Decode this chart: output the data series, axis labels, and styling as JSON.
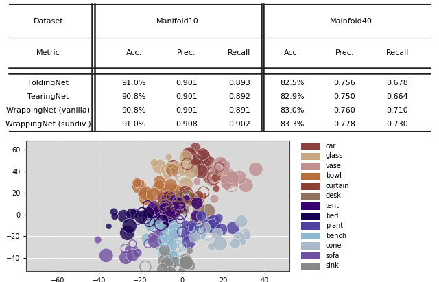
{
  "table_header1_left": "Dataset",
  "table_header1_mid": "Manifold10",
  "table_header1_right": "Mainfold40",
  "table_header2": [
    "Metric",
    "Acc.",
    "Prec.",
    "Recall",
    "Acc.",
    "Prec.",
    "Recall"
  ],
  "table_rows": [
    [
      "FoldingNet",
      "91.0%",
      "0.901",
      "0.893",
      "82.5%",
      "0.756",
      "0.678"
    ],
    [
      "TearingNet",
      "90.8%",
      "0.901",
      "0.892",
      "82.9%",
      "0.750",
      "0.664"
    ],
    [
      "WrappingNet (vanilla)",
      "90.8%",
      "0.901",
      "0.891",
      "83.0%",
      "0.760",
      "0.710"
    ],
    [
      "WrappingNet (subdiv.)",
      "91.0%",
      "0.908",
      "0.902",
      "83.3%",
      "0.778",
      "0.730"
    ]
  ],
  "scatter_categories": [
    "car",
    "glass",
    "vase",
    "bowl",
    "curtain",
    "desk",
    "tent",
    "bed",
    "plant",
    "bench",
    "cone",
    "sofa",
    "sink"
  ],
  "legend_colors": [
    "#8B4040",
    "#C8A882",
    "#C09090",
    "#B87040",
    "#904030",
    "#907060",
    "#380070",
    "#180050",
    "#5040A0",
    "#90B8D0",
    "#A8B8C8",
    "#7050A0",
    "#888888"
  ],
  "xlim": [
    -75,
    52
  ],
  "ylim": [
    -52,
    68
  ],
  "xticks": [
    -60,
    -40,
    -20,
    0,
    20,
    40
  ],
  "yticks": [
    -40,
    -20,
    0,
    20,
    40,
    60
  ],
  "scatter_facecolor": "#d8d8d8"
}
